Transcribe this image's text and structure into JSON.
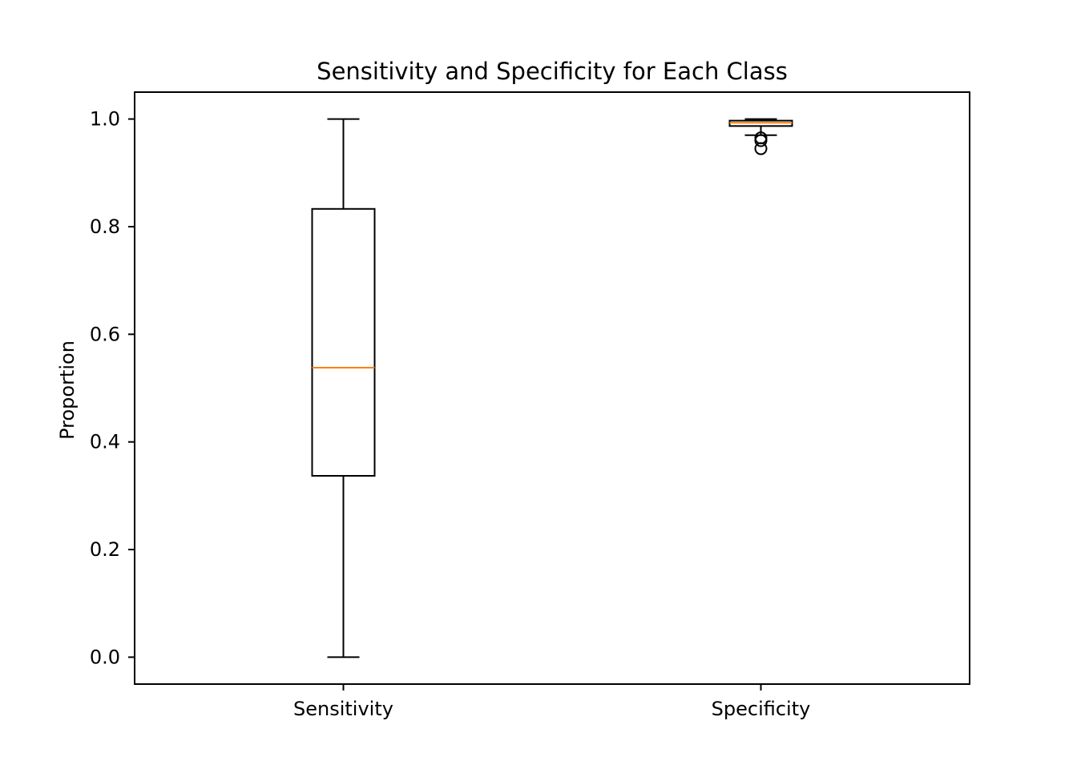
{
  "chart_data": {
    "type": "boxplot",
    "title": "Sensitivity and Specificity for Each Class",
    "xlabel": "",
    "ylabel": "Proportion",
    "ylim": [
      -0.05,
      1.05
    ],
    "yticks": [
      "0.0",
      "0.2",
      "0.4",
      "0.6",
      "0.8",
      "1.0"
    ],
    "grid": false,
    "boxes": [
      {
        "label": "Sensitivity",
        "whisker_low": 0.0,
        "q1": 0.337,
        "median": 0.538,
        "q3": 0.833,
        "whisker_high": 1.0,
        "outliers": []
      },
      {
        "label": "Specificity",
        "whisker_low": 0.97,
        "q1": 0.987,
        "median": 0.993,
        "q3": 0.997,
        "whisker_high": 1.0,
        "outliers": [
          0.96,
          0.965,
          0.945
        ]
      }
    ],
    "colors": {
      "box": "#000000",
      "median": "#ff7f0e",
      "outlier": "#000000"
    }
  }
}
